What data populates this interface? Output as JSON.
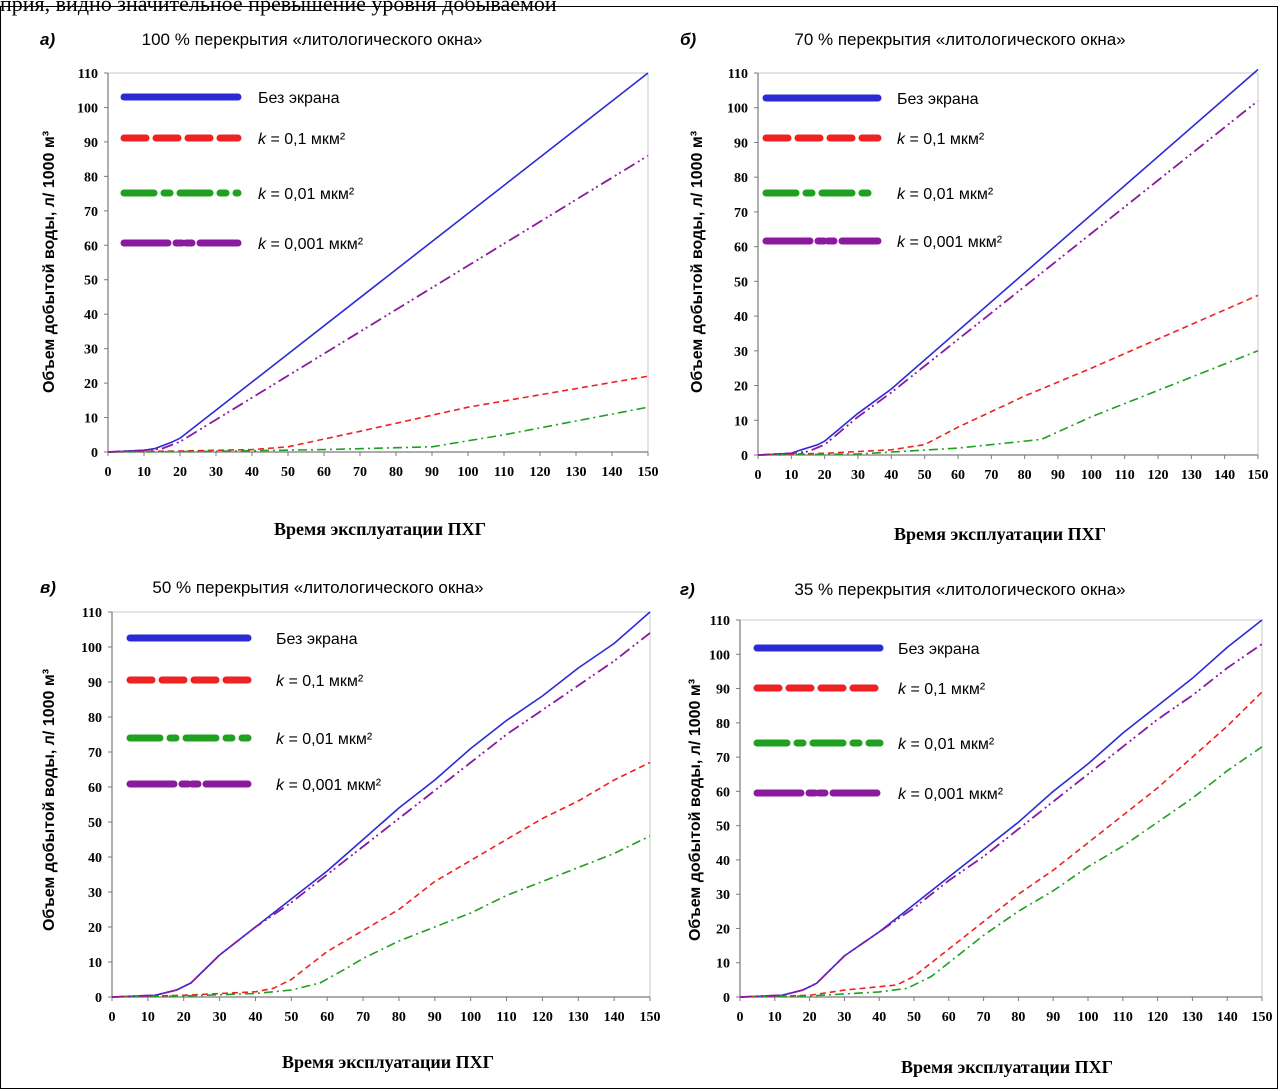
{
  "page": {
    "top_caption": "прия, видно значительное превышение уровня добываемой"
  },
  "chart_data": [
    {
      "type": "line",
      "panel_letter": "а)",
      "title": "100 % перекрытия «литологического окна»",
      "xlabel": "Время эксплуатации ПХГ",
      "ylabel": "Объем добытой воды, л/ 1000 м³",
      "xlim": [
        0,
        150
      ],
      "ylim": [
        0,
        110
      ],
      "xticks": [
        0,
        10,
        20,
        30,
        40,
        50,
        60,
        70,
        80,
        90,
        100,
        110,
        120,
        130,
        140,
        150
      ],
      "yticks": [
        0,
        10,
        20,
        30,
        40,
        50,
        60,
        70,
        80,
        90,
        100,
        110
      ],
      "legend_position": "top-left",
      "grid": false,
      "series": [
        {
          "name": "Без экрана",
          "k_value": "",
          "color": "#2b2bd6",
          "style": "solid",
          "points": [
            [
              0,
              0
            ],
            [
              10,
              0.5
            ],
            [
              13,
              1
            ],
            [
              18,
              3
            ],
            [
              20,
              4
            ],
            [
              150,
              110
            ]
          ]
        },
        {
          "name": "k = 0,1 мкм²",
          "k_value": "0,1",
          "color": "#ee2222",
          "style": "dash",
          "points": [
            [
              0,
              0
            ],
            [
              20,
              0.3
            ],
            [
              40,
              0.7
            ],
            [
              50,
              1.5
            ],
            [
              70,
              6
            ],
            [
              100,
              13
            ],
            [
              150,
              22
            ]
          ]
        },
        {
          "name": "k = 0,01 мкм²",
          "k_value": "0,01",
          "color": "#20a020",
          "style": "dashdot",
          "points": [
            [
              0,
              0
            ],
            [
              30,
              0.2
            ],
            [
              60,
              0.7
            ],
            [
              90,
              1.5
            ],
            [
              110,
              5
            ],
            [
              150,
              13
            ]
          ]
        },
        {
          "name": "k = 0,001 мкм²",
          "k_value": "0,001",
          "color": "#8b1a9e",
          "style": "dashdotdot",
          "points": [
            [
              0,
              0
            ],
            [
              10,
              0.5
            ],
            [
              15,
              1
            ],
            [
              20,
              3
            ],
            [
              150,
              86
            ]
          ]
        }
      ]
    },
    {
      "type": "line",
      "panel_letter": "б)",
      "title": "70 % перекрытия «литологического окна»",
      "xlabel": "Время эксплуатации ПХГ",
      "ylabel": "Объем добытой воды, л/ 1000 м³",
      "xlim": [
        0,
        150
      ],
      "ylim": [
        0,
        110
      ],
      "xticks": [
        0,
        10,
        20,
        30,
        40,
        50,
        60,
        70,
        80,
        90,
        100,
        110,
        120,
        130,
        140,
        150
      ],
      "yticks": [
        0,
        10,
        20,
        30,
        40,
        50,
        60,
        70,
        80,
        90,
        100,
        110
      ],
      "legend_position": "top-left",
      "grid": false,
      "series": [
        {
          "name": "Без экрана",
          "k_value": "",
          "color": "#2b2bd6",
          "style": "solid",
          "points": [
            [
              0,
              0
            ],
            [
              10,
              0.5
            ],
            [
              13,
              1.5
            ],
            [
              18,
              3
            ],
            [
              20,
              4
            ],
            [
              30,
              12
            ],
            [
              40,
              19
            ],
            [
              150,
              111
            ]
          ]
        },
        {
          "name": "k = 0,1 мкм²",
          "k_value": "0,1",
          "color": "#ee2222",
          "style": "dash",
          "points": [
            [
              0,
              0
            ],
            [
              20,
              0.5
            ],
            [
              40,
              1.5
            ],
            [
              50,
              3
            ],
            [
              60,
              8
            ],
            [
              80,
              17
            ],
            [
              100,
              25
            ],
            [
              150,
              46
            ]
          ]
        },
        {
          "name": "k = 0,01 мкм²",
          "k_value": "0,01",
          "color": "#20a020",
          "style": "dashdot",
          "points": [
            [
              0,
              0
            ],
            [
              30,
              0.3
            ],
            [
              60,
              2
            ],
            [
              85,
              4.5
            ],
            [
              100,
              11
            ],
            [
              150,
              30
            ]
          ]
        },
        {
          "name": "k = 0,001 мкм²",
          "k_value": "0,001",
          "color": "#8b1a9e",
          "style": "dashdotdot",
          "points": [
            [
              0,
              0
            ],
            [
              10,
              0.5
            ],
            [
              15,
              1
            ],
            [
              20,
              3
            ],
            [
              30,
              11
            ],
            [
              40,
              18
            ],
            [
              150,
              102
            ]
          ]
        }
      ]
    },
    {
      "type": "line",
      "panel_letter": "в)",
      "title": "50 % перекрытия «литологического окна»",
      "xlabel": "Время эксплуатации ПХГ",
      "ylabel": "Объем добытой воды, л/ 1000 м³",
      "xlim": [
        0,
        150
      ],
      "ylim": [
        0,
        110
      ],
      "xticks": [
        0,
        10,
        20,
        30,
        40,
        50,
        60,
        70,
        80,
        90,
        100,
        110,
        120,
        130,
        140,
        150
      ],
      "yticks": [
        0,
        10,
        20,
        30,
        40,
        50,
        60,
        70,
        80,
        90,
        100,
        110
      ],
      "legend_position": "top-left",
      "grid": false,
      "series": [
        {
          "name": "Без экрана",
          "k_value": "",
          "color": "#2b2bd6",
          "style": "solid",
          "points": [
            [
              0,
              0
            ],
            [
              12,
              0.5
            ],
            [
              18,
              2
            ],
            [
              22,
              4
            ],
            [
              30,
              12
            ],
            [
              40,
              20
            ],
            [
              50,
              28
            ],
            [
              60,
              36
            ],
            [
              70,
              45
            ],
            [
              80,
              54
            ],
            [
              90,
              62
            ],
            [
              100,
              71
            ],
            [
              110,
              79
            ],
            [
              120,
              86
            ],
            [
              130,
              94
            ],
            [
              140,
              101
            ],
            [
              150,
              110
            ]
          ]
        },
        {
          "name": "k = 0,1 мкм²",
          "k_value": "0,1",
          "color": "#ee2222",
          "style": "dash",
          "points": [
            [
              0,
              0
            ],
            [
              20,
              0.5
            ],
            [
              40,
              1.5
            ],
            [
              45,
              2.5
            ],
            [
              50,
              5
            ],
            [
              60,
              13
            ],
            [
              70,
              19
            ],
            [
              80,
              25
            ],
            [
              90,
              33
            ],
            [
              100,
              39
            ],
            [
              110,
              45
            ],
            [
              120,
              51
            ],
            [
              130,
              56
            ],
            [
              140,
              62
            ],
            [
              150,
              67
            ]
          ]
        },
        {
          "name": "k = 0,01 мкм²",
          "k_value": "0,01",
          "color": "#20a020",
          "style": "dashdot",
          "points": [
            [
              0,
              0
            ],
            [
              20,
              0.3
            ],
            [
              40,
              1
            ],
            [
              50,
              2
            ],
            [
              58,
              4
            ],
            [
              65,
              8
            ],
            [
              70,
              11
            ],
            [
              80,
              16
            ],
            [
              90,
              20
            ],
            [
              100,
              24
            ],
            [
              110,
              29
            ],
            [
              120,
              33
            ],
            [
              130,
              37
            ],
            [
              140,
              41
            ],
            [
              150,
              46
            ]
          ]
        },
        {
          "name": "k = 0,001 мкм²",
          "k_value": "0,001",
          "color": "#8b1a9e",
          "style": "dashdotdot",
          "points": [
            [
              0,
              0
            ],
            [
              12,
              0.5
            ],
            [
              18,
              2
            ],
            [
              22,
              4
            ],
            [
              30,
              12
            ],
            [
              40,
              20
            ],
            [
              50,
              27
            ],
            [
              60,
              35
            ],
            [
              70,
              43
            ],
            [
              80,
              51
            ],
            [
              90,
              59
            ],
            [
              100,
              67
            ],
            [
              110,
              75
            ],
            [
              120,
              82
            ],
            [
              130,
              89
            ],
            [
              140,
              96
            ],
            [
              150,
              104
            ]
          ]
        }
      ]
    },
    {
      "type": "line",
      "panel_letter": "г)",
      "title": "35 % перекрытия «литологического окна»",
      "xlabel": "Время эксплуатации ПХГ",
      "ylabel": "Объем добытой воды, л/ 1000 м³",
      "xlim": [
        0,
        150
      ],
      "ylim": [
        0,
        110
      ],
      "xticks": [
        0,
        10,
        20,
        30,
        40,
        50,
        60,
        70,
        80,
        90,
        100,
        110,
        120,
        130,
        140,
        150
      ],
      "yticks": [
        0,
        10,
        20,
        30,
        40,
        50,
        60,
        70,
        80,
        90,
        100,
        110
      ],
      "legend_position": "top-left",
      "grid": false,
      "series": [
        {
          "name": "Без экрана",
          "k_value": "",
          "color": "#2b2bd6",
          "style": "solid",
          "points": [
            [
              0,
              0
            ],
            [
              12,
              0.5
            ],
            [
              18,
              2
            ],
            [
              22,
              4
            ],
            [
              30,
              12
            ],
            [
              40,
              19
            ],
            [
              50,
              27
            ],
            [
              60,
              35
            ],
            [
              70,
              43
            ],
            [
              80,
              51
            ],
            [
              90,
              60
            ],
            [
              100,
              68
            ],
            [
              110,
              77
            ],
            [
              120,
              85
            ],
            [
              130,
              93
            ],
            [
              140,
              102
            ],
            [
              150,
              110
            ]
          ]
        },
        {
          "name": "k = 0,1 мкм²",
          "k_value": "0,1",
          "color": "#ee2222",
          "style": "dash",
          "points": [
            [
              0,
              0
            ],
            [
              20,
              0.5
            ],
            [
              30,
              2
            ],
            [
              40,
              3
            ],
            [
              45,
              3.5
            ],
            [
              50,
              6
            ],
            [
              60,
              14
            ],
            [
              70,
              22
            ],
            [
              80,
              30
            ],
            [
              90,
              37
            ],
            [
              100,
              45
            ],
            [
              110,
              53
            ],
            [
              120,
              61
            ],
            [
              130,
              70
            ],
            [
              140,
              79
            ],
            [
              150,
              89
            ]
          ]
        },
        {
          "name": "k = 0,01 мкм²",
          "k_value": "0,01",
          "color": "#20a020",
          "style": "dashdot",
          "points": [
            [
              0,
              0
            ],
            [
              20,
              0.3
            ],
            [
              40,
              1.5
            ],
            [
              48,
              2.5
            ],
            [
              55,
              6
            ],
            [
              60,
              10
            ],
            [
              70,
              18
            ],
            [
              80,
              25
            ],
            [
              90,
              31
            ],
            [
              100,
              38
            ],
            [
              110,
              44
            ],
            [
              120,
              51
            ],
            [
              130,
              58
            ],
            [
              140,
              66
            ],
            [
              150,
              73
            ]
          ]
        },
        {
          "name": "k = 0,001 мкм²",
          "k_value": "0,001",
          "color": "#8b1a9e",
          "style": "dashdotdot",
          "points": [
            [
              0,
              0
            ],
            [
              12,
              0.5
            ],
            [
              18,
              2
            ],
            [
              22,
              4
            ],
            [
              30,
              12
            ],
            [
              40,
              19
            ],
            [
              50,
              26
            ],
            [
              60,
              34
            ],
            [
              70,
              41
            ],
            [
              80,
              49
            ],
            [
              90,
              57
            ],
            [
              100,
              65
            ],
            [
              110,
              73
            ],
            [
              120,
              81
            ],
            [
              130,
              88
            ],
            [
              140,
              96
            ],
            [
              150,
              103
            ]
          ]
        }
      ]
    }
  ]
}
